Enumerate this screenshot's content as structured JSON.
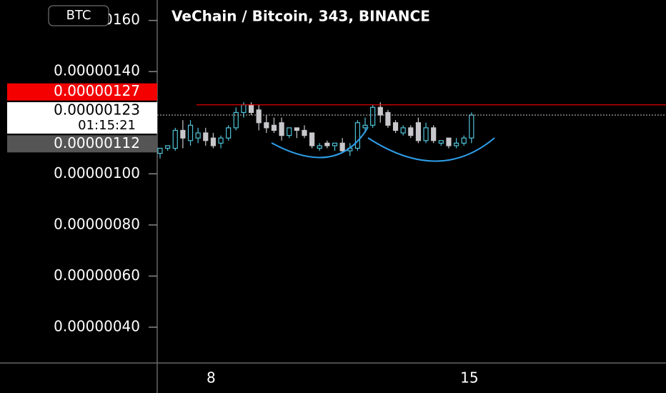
{
  "chart_data": {
    "type": "candlestick",
    "title": "VeChain / Bitcoin, 343, BINANCE",
    "symbol_button": "BTC",
    "categories": [
      null,
      null,
      null,
      null,
      null,
      null,
      null,
      "8",
      null,
      null,
      null,
      null,
      null,
      null,
      null,
      null,
      null,
      null,
      null,
      null,
      null,
      null,
      null,
      null,
      null,
      null,
      null,
      null,
      null,
      null,
      null,
      null,
      null,
      null,
      null,
      null,
      null,
      null,
      null,
      null,
      null,
      "15"
    ],
    "open": [
      1.08e-06,
      1.1e-06,
      1.1e-06,
      1.17e-06,
      1.13e-06,
      1.14e-06,
      1.16e-06,
      1.14e-06,
      1.12e-06,
      1.14e-06,
      1.18e-06,
      1.24e-06,
      1.27e-06,
      1.25e-06,
      1.2e-06,
      1.19e-06,
      1.2e-06,
      1.15e-06,
      1.18e-06,
      1.17e-06,
      1.16e-06,
      1.1e-06,
      1.12e-06,
      1.11e-06,
      1.12e-06,
      1.09e-06,
      1.1e-06,
      1.18e-06,
      1.19e-06,
      1.26e-06,
      1.24e-06,
      1.2e-06,
      1.16e-06,
      1.18e-06,
      1.2e-06,
      1.13e-06,
      1.18e-06,
      1.12e-06,
      1.14e-06,
      1.11e-06,
      1.12e-06,
      1.14e-06
    ],
    "high": [
      1.1e-06,
      1.11e-06,
      1.18e-06,
      1.21e-06,
      1.21e-06,
      1.18e-06,
      1.18e-06,
      1.16e-06,
      1.15e-06,
      1.19e-06,
      1.26e-06,
      1.28e-06,
      1.28e-06,
      1.27e-06,
      1.23e-06,
      1.22e-06,
      1.22e-06,
      1.18e-06,
      1.18e-06,
      1.19e-06,
      1.16e-06,
      1.12e-06,
      1.13e-06,
      1.12e-06,
      1.14e-06,
      1.12e-06,
      1.21e-06,
      1.22e-06,
      1.27e-06,
      1.28e-06,
      1.25e-06,
      1.21e-06,
      1.19e-06,
      1.19e-06,
      1.22e-06,
      1.2e-06,
      1.19e-06,
      1.13e-06,
      1.14e-06,
      1.14e-06,
      1.15e-06,
      1.24e-06
    ],
    "low": [
      1.06e-06,
      1.09e-06,
      1.09e-06,
      1.1e-06,
      1.11e-06,
      1.12e-06,
      1.11e-06,
      1.1e-06,
      1.1e-06,
      1.13e-06,
      1.17e-06,
      1.22e-06,
      1.23e-06,
      1.17e-06,
      1.16e-06,
      1.16e-06,
      1.13e-06,
      1.14e-06,
      1.14e-06,
      1.14e-06,
      1.1e-06,
      1.09e-06,
      1.1e-06,
      1.09e-06,
      1.08e-06,
      1.07e-06,
      1.09e-06,
      1.16e-06,
      1.18e-06,
      1.2e-06,
      1.18e-06,
      1.16e-06,
      1.15e-06,
      1.14e-06,
      1.12e-06,
      1.12e-06,
      1.12e-06,
      1.11e-06,
      1.1e-06,
      1.1e-06,
      1.11e-06,
      1.12e-06
    ],
    "close": [
      1.1e-06,
      1.11e-06,
      1.17e-06,
      1.14e-06,
      1.19e-06,
      1.16e-06,
      1.13e-06,
      1.11e-06,
      1.14e-06,
      1.18e-06,
      1.24e-06,
      1.27e-06,
      1.24e-06,
      1.2e-06,
      1.18e-06,
      1.17e-06,
      1.15e-06,
      1.18e-06,
      1.17e-06,
      1.15e-06,
      1.11e-06,
      1.11e-06,
      1.11e-06,
      1.12e-06,
      1.09e-06,
      1.1e-06,
      1.2e-06,
      1.19e-06,
      1.26e-06,
      1.23e-06,
      1.19e-06,
      1.17e-06,
      1.18e-06,
      1.15e-06,
      1.13e-06,
      1.18e-06,
      1.13e-06,
      1.13e-06,
      1.11e-06,
      1.12e-06,
      1.14e-06,
      1.23e-06
    ],
    "up_color": "#4fc3d9",
    "down_color": "#c8c8cc",
    "ylim": [
      2.6e-07,
      1.68e-06
    ],
    "yticks": [
      {
        "value": 4e-07,
        "label": "0.00000040"
      },
      {
        "value": 6e-07,
        "label": "0.00000060"
      },
      {
        "value": 8e-07,
        "label": "0.00000080"
      },
      {
        "value": 1e-06,
        "label": "0.00000100"
      },
      {
        "value": 1.4e-06,
        "label": "0.00000140"
      },
      {
        "value": 1.6e-06,
        "label": "0.00000160"
      }
    ],
    "price_labels": [
      {
        "value": 1.27e-06,
        "label": "0.00000127",
        "color": "#f50000"
      },
      {
        "value": 1.23e-06,
        "label": "0.00000123",
        "color": "#ffffff"
      },
      {
        "value": 1.12e-06,
        "label": "0.00000112",
        "color": "#555555"
      }
    ],
    "countdown": "01:15:21"
  }
}
